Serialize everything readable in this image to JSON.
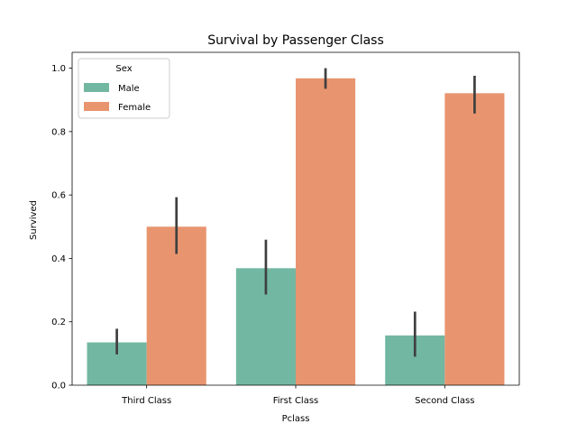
{
  "chart_data": {
    "type": "bar",
    "title": "Survival by Passenger Class",
    "xlabel": "Pclass",
    "ylabel": "Survived",
    "categories": [
      "Third Class",
      "First Class",
      "Second Class"
    ],
    "ylim": [
      0,
      1.05
    ],
    "yticks": [
      "0.0",
      "0.2",
      "0.4",
      "0.6",
      "0.8",
      "1.0"
    ],
    "legend": {
      "title": "Sex",
      "placement": "top-left"
    },
    "grid": false,
    "series": [
      {
        "name": "Male",
        "color": "#72b7a1",
        "values": [
          0.135,
          0.369,
          0.157
        ],
        "ci": [
          [
            0.097,
            0.178
          ],
          [
            0.286,
            0.459
          ],
          [
            0.09,
            0.232
          ]
        ]
      },
      {
        "name": "Female",
        "color": "#e8956f",
        "values": [
          0.5,
          0.968,
          0.921
        ],
        "ci": [
          [
            0.414,
            0.593
          ],
          [
            0.935,
            1.0
          ],
          [
            0.857,
            0.976
          ]
        ]
      }
    ],
    "errorbar_color": "#3f3f3f"
  }
}
